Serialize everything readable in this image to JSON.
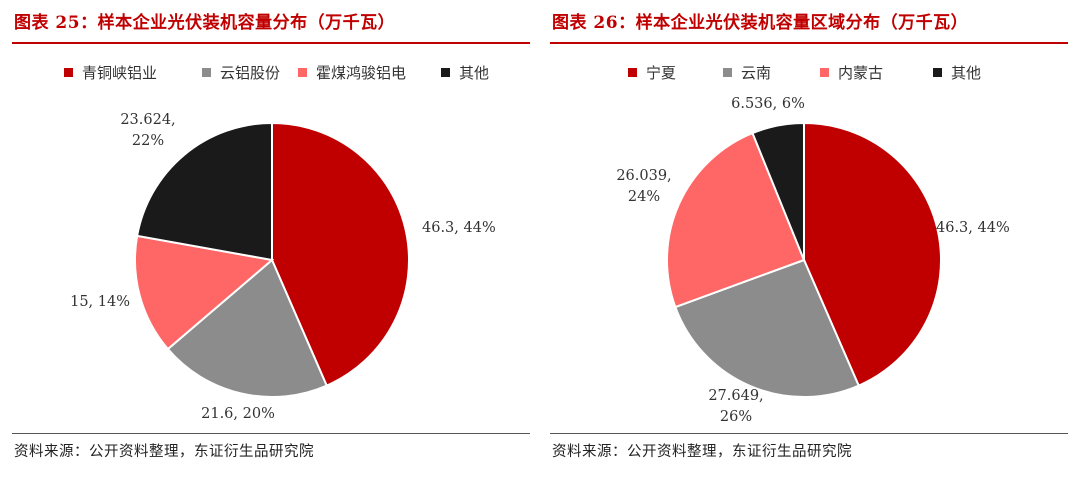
{
  "chart_data": [
    {
      "type": "pie",
      "title": "图表 25：样本企业光伏装机容量分布（万千瓦）",
      "categories": [
        "青铜峡铝业",
        "云铝股份",
        "霍煤鸿骏铝电",
        "其他"
      ],
      "values": [
        46.3,
        21.6,
        15,
        23.624
      ],
      "percents": [
        "44%",
        "20%",
        "14%",
        "22%"
      ],
      "value_labels": [
        "46.3",
        "21.6",
        "15",
        "23.624"
      ],
      "colors": [
        "#c00000",
        "#8c8c8c",
        "#ff6666",
        "#1a1a1a"
      ],
      "legend": "top",
      "source": "资料来源：公开资料整理，东证衍生品研究院"
    },
    {
      "type": "pie",
      "title": "图表 26：样本企业光伏装机容量区域分布（万千瓦）",
      "categories": [
        "宁夏",
        "云南",
        "内蒙古",
        "其他"
      ],
      "values": [
        46.3,
        27.649,
        26.039,
        6.536
      ],
      "percents": [
        "44%",
        "26%",
        "24%",
        "6%"
      ],
      "value_labels": [
        "46.3",
        "27.649",
        "26.039",
        "6.536"
      ],
      "colors": [
        "#c00000",
        "#8c8c8c",
        "#ff6666",
        "#1a1a1a"
      ],
      "legend": "top",
      "source": "资料来源：公开资料整理，东证衍生品研究院"
    }
  ]
}
